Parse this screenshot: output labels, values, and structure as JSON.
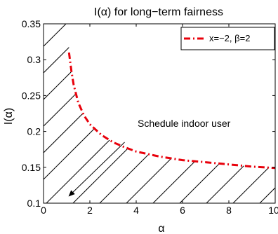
{
  "chart_data": {
    "type": "line",
    "title": "I(α) for long−term fairness",
    "xlabel": "α",
    "ylabel": "I(α)",
    "xlim": [
      0,
      10
    ],
    "ylim": [
      0.1,
      0.35
    ],
    "xticks": [
      0,
      2,
      4,
      6,
      8,
      10
    ],
    "xtick_labels": [
      "0",
      "2",
      "4",
      "6",
      "8",
      "10"
    ],
    "yticks": [
      0.1,
      0.15,
      0.2,
      0.25,
      0.3,
      0.35
    ],
    "ytick_labels": [
      "0.1",
      "0.15",
      "0.2",
      "0.25",
      "0.3",
      "0.35"
    ],
    "grid": false,
    "legend_position": "top-right",
    "series": [
      {
        "name": "x=−2, β=2",
        "color": "#e8000b",
        "style": "dash-dot",
        "x": [
          1.1,
          1.2,
          1.3,
          1.5,
          1.75,
          2.0,
          2.5,
          3.0,
          3.5,
          4.0,
          5.0,
          6.0,
          7.0,
          8.0,
          9.0,
          10.0
        ],
        "y": [
          0.31,
          0.285,
          0.265,
          0.24,
          0.222,
          0.21,
          0.195,
          0.185,
          0.178,
          0.172,
          0.165,
          0.16,
          0.157,
          0.154,
          0.151,
          0.149
        ]
      }
    ],
    "annotations": [
      {
        "text": "Schedule indoor user",
        "arrow_from": [
          3.5,
          0.185
        ],
        "arrow_to": [
          1.1,
          0.11
        ]
      }
    ],
    "shaded_region": "hatched area below curve"
  }
}
